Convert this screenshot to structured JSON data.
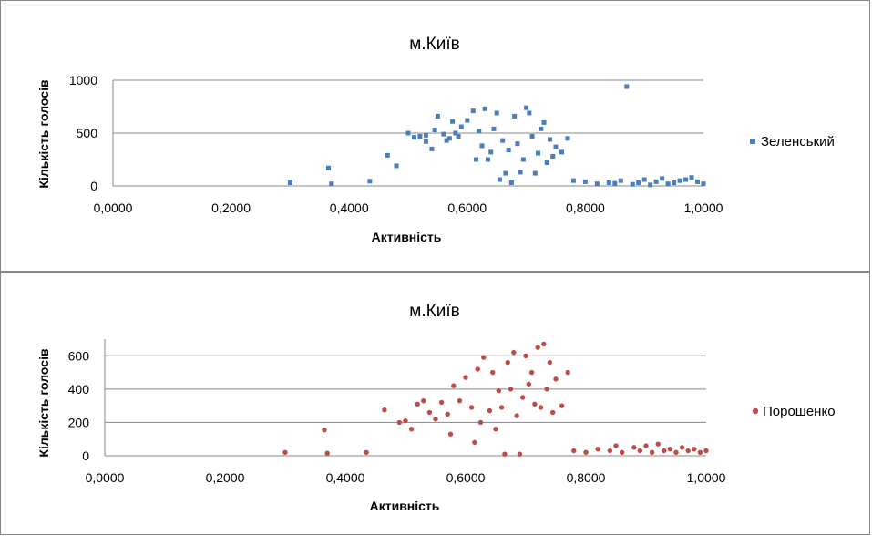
{
  "colors": {
    "series1": "#4a7ebb",
    "series2": "#be4b48",
    "grid": "#888888",
    "axis": "#888888"
  },
  "chart_data": [
    {
      "type": "scatter",
      "title": "м.Київ",
      "xlabel": "Активність",
      "ylabel": "Кількість голосів",
      "xlim": [
        0,
        1
      ],
      "ylim": [
        0,
        1000
      ],
      "xticks": [
        "0,0000",
        "0,2000",
        "0,4000",
        "0,6000",
        "0,8000",
        "1,0000"
      ],
      "yticks": [
        "0",
        "500",
        "1000"
      ],
      "legend_position": "right",
      "marker": "square",
      "series": [
        {
          "name": "Зеленський",
          "points": [
            [
              0.3,
              30
            ],
            [
              0.365,
              170
            ],
            [
              0.37,
              20
            ],
            [
              0.435,
              45
            ],
            [
              0.465,
              290
            ],
            [
              0.48,
              190
            ],
            [
              0.5,
              500
            ],
            [
              0.51,
              460
            ],
            [
              0.52,
              470
            ],
            [
              0.53,
              480
            ],
            [
              0.53,
              420
            ],
            [
              0.54,
              350
            ],
            [
              0.545,
              530
            ],
            [
              0.55,
              660
            ],
            [
              0.56,
              490
            ],
            [
              0.565,
              430
            ],
            [
              0.57,
              450
            ],
            [
              0.575,
              610
            ],
            [
              0.58,
              500
            ],
            [
              0.585,
              470
            ],
            [
              0.59,
              560
            ],
            [
              0.6,
              620
            ],
            [
              0.61,
              710
            ],
            [
              0.615,
              250
            ],
            [
              0.62,
              520
            ],
            [
              0.625,
              380
            ],
            [
              0.63,
              730
            ],
            [
              0.635,
              250
            ],
            [
              0.64,
              320
            ],
            [
              0.645,
              540
            ],
            [
              0.65,
              690
            ],
            [
              0.655,
              60
            ],
            [
              0.66,
              430
            ],
            [
              0.665,
              120
            ],
            [
              0.67,
              340
            ],
            [
              0.675,
              30
            ],
            [
              0.68,
              660
            ],
            [
              0.685,
              400
            ],
            [
              0.69,
              130
            ],
            [
              0.695,
              250
            ],
            [
              0.7,
              740
            ],
            [
              0.705,
              690
            ],
            [
              0.71,
              470
            ],
            [
              0.715,
              120
            ],
            [
              0.72,
              310
            ],
            [
              0.725,
              540
            ],
            [
              0.73,
              600
            ],
            [
              0.735,
              220
            ],
            [
              0.74,
              440
            ],
            [
              0.745,
              280
            ],
            [
              0.75,
              370
            ],
            [
              0.76,
              320
            ],
            [
              0.77,
              450
            ],
            [
              0.78,
              50
            ],
            [
              0.8,
              40
            ],
            [
              0.82,
              20
            ],
            [
              0.84,
              30
            ],
            [
              0.85,
              25
            ],
            [
              0.86,
              50
            ],
            [
              0.87,
              940
            ],
            [
              0.88,
              15
            ],
            [
              0.89,
              30
            ],
            [
              0.9,
              60
            ],
            [
              0.91,
              10
            ],
            [
              0.92,
              40
            ],
            [
              0.93,
              70
            ],
            [
              0.94,
              20
            ],
            [
              0.95,
              30
            ],
            [
              0.96,
              50
            ],
            [
              0.97,
              60
            ],
            [
              0.98,
              80
            ],
            [
              0.99,
              40
            ],
            [
              1.0,
              20
            ]
          ]
        }
      ]
    },
    {
      "type": "scatter",
      "title": "м.Київ",
      "xlabel": "Активність",
      "ylabel": "Кількість голосів",
      "xlim": [
        0,
        1
      ],
      "ylim": [
        0,
        700
      ],
      "xticks": [
        "0,0000",
        "0,2000",
        "0,4000",
        "0,6000",
        "0,8000",
        "1,0000"
      ],
      "yticks": [
        "0",
        "200",
        "400",
        "600"
      ],
      "legend_position": "right",
      "marker": "circle",
      "series": [
        {
          "name": "Порошенко",
          "points": [
            [
              0.3,
              20
            ],
            [
              0.365,
              155
            ],
            [
              0.37,
              15
            ],
            [
              0.435,
              20
            ],
            [
              0.465,
              275
            ],
            [
              0.49,
              200
            ],
            [
              0.5,
              210
            ],
            [
              0.51,
              160
            ],
            [
              0.52,
              310
            ],
            [
              0.53,
              330
            ],
            [
              0.54,
              260
            ],
            [
              0.55,
              220
            ],
            [
              0.56,
              320
            ],
            [
              0.57,
              250
            ],
            [
              0.575,
              130
            ],
            [
              0.58,
              420
            ],
            [
              0.59,
              330
            ],
            [
              0.6,
              470
            ],
            [
              0.61,
              290
            ],
            [
              0.615,
              80
            ],
            [
              0.62,
              520
            ],
            [
              0.625,
              200
            ],
            [
              0.63,
              590
            ],
            [
              0.64,
              270
            ],
            [
              0.645,
              500
            ],
            [
              0.65,
              160
            ],
            [
              0.655,
              390
            ],
            [
              0.66,
              290
            ],
            [
              0.665,
              10
            ],
            [
              0.67,
              560
            ],
            [
              0.675,
              400
            ],
            [
              0.68,
              620
            ],
            [
              0.685,
              240
            ],
            [
              0.69,
              10
            ],
            [
              0.695,
              350
            ],
            [
              0.7,
              600
            ],
            [
              0.705,
              430
            ],
            [
              0.71,
              500
            ],
            [
              0.715,
              310
            ],
            [
              0.72,
              650
            ],
            [
              0.725,
              290
            ],
            [
              0.73,
              670
            ],
            [
              0.735,
              400
            ],
            [
              0.74,
              560
            ],
            [
              0.745,
              260
            ],
            [
              0.75,
              460
            ],
            [
              0.76,
              300
            ],
            [
              0.77,
              500
            ],
            [
              0.78,
              30
            ],
            [
              0.8,
              20
            ],
            [
              0.82,
              40
            ],
            [
              0.84,
              30
            ],
            [
              0.85,
              60
            ],
            [
              0.86,
              20
            ],
            [
              0.88,
              50
            ],
            [
              0.89,
              30
            ],
            [
              0.9,
              60
            ],
            [
              0.91,
              20
            ],
            [
              0.92,
              70
            ],
            [
              0.93,
              30
            ],
            [
              0.94,
              40
            ],
            [
              0.95,
              20
            ],
            [
              0.96,
              50
            ],
            [
              0.97,
              30
            ],
            [
              0.98,
              40
            ],
            [
              0.99,
              20
            ],
            [
              1.0,
              30
            ]
          ]
        }
      ]
    }
  ]
}
